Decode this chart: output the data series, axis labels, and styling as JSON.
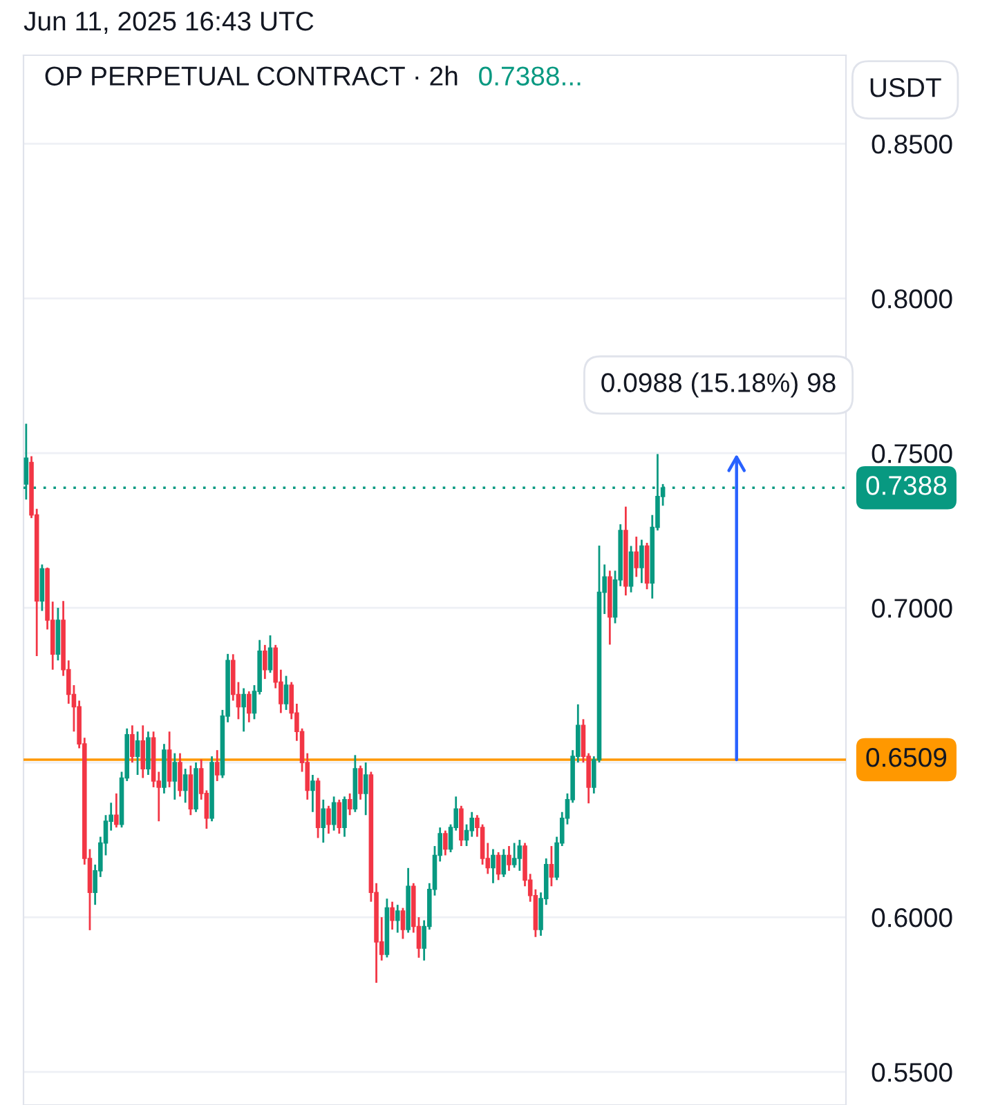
{
  "chart_data": {
    "type": "candlestick",
    "title": "OP PERPETUAL CONTRACT · 2h",
    "ylabel": "USDT",
    "annotations": [
      "Jun 11, 2025 16:43 UTC",
      "0.7388...",
      "0.0988 (15.18%) 98"
    ],
    "categories": [
      null,
      null,
      null,
      null,
      null,
      null,
      null,
      null,
      null,
      null,
      null,
      null,
      null,
      null,
      null,
      null,
      null,
      null,
      null,
      null,
      null,
      null,
      null,
      null,
      null,
      null,
      null,
      null,
      null,
      null,
      null,
      null,
      null,
      null,
      null,
      null,
      null,
      null,
      null,
      null,
      null,
      null,
      null,
      null,
      null,
      null,
      null,
      null,
      null,
      null,
      null,
      null,
      null,
      null,
      null,
      null,
      null,
      null,
      null,
      null,
      null,
      null,
      null,
      null,
      null,
      null,
      null,
      null,
      null,
      null,
      null,
      null,
      null,
      null,
      null,
      null,
      null,
      null,
      null,
      null,
      null,
      null,
      null,
      null,
      null,
      null,
      null,
      null,
      null,
      null,
      null,
      null,
      null,
      null,
      null,
      null,
      null,
      null,
      null,
      null,
      null,
      null,
      null,
      null,
      null,
      null,
      null,
      null,
      null,
      null,
      null,
      null,
      null,
      null,
      null,
      null,
      null,
      null,
      null,
      null,
      null,
      null,
      null,
      null,
      null,
      null,
      null,
      null,
      null,
      null,
      null,
      null,
      null,
      null,
      null,
      null,
      null,
      null,
      null,
      null,
      null,
      null,
      null,
      null,
      null,
      null,
      null,
      null,
      null,
      null,
      null,
      null,
      null,
      null,
      null
    ],
    "ohlc": [
      [
        0.74,
        0.7595,
        0.735,
        0.7484
      ],
      [
        0.747,
        0.749,
        0.729,
        0.73
      ],
      [
        0.73,
        0.732,
        0.6844,
        0.7022
      ],
      [
        0.7022,
        0.714,
        0.699,
        0.7126
      ],
      [
        0.7126,
        0.713,
        0.693,
        0.696
      ],
      [
        0.696,
        0.702,
        0.68,
        0.685
      ],
      [
        0.685,
        0.7,
        0.683,
        0.696
      ],
      [
        0.696,
        0.7022,
        0.678,
        0.68
      ],
      [
        0.68,
        0.683,
        0.669,
        0.672
      ],
      [
        0.672,
        0.675,
        0.66,
        0.668
      ],
      [
        0.668,
        0.67,
        0.6546,
        0.656
      ],
      [
        0.656,
        0.658,
        0.617,
        0.619
      ],
      [
        0.619,
        0.622,
        0.5958,
        0.608
      ],
      [
        0.608,
        0.617,
        0.604,
        0.615
      ],
      [
        0.615,
        0.626,
        0.613,
        0.624
      ],
      [
        0.624,
        0.633,
        0.62,
        0.631
      ],
      [
        0.631,
        0.637,
        0.628,
        0.633
      ],
      [
        0.633,
        0.64,
        0.629,
        0.63
      ],
      [
        0.63,
        0.647,
        0.629,
        0.645
      ],
      [
        0.645,
        0.661,
        0.644,
        0.659
      ],
      [
        0.659,
        0.662,
        0.65,
        0.652
      ],
      [
        0.652,
        0.66,
        0.646,
        0.657
      ],
      [
        0.657,
        0.662,
        0.645,
        0.648
      ],
      [
        0.648,
        0.66,
        0.646,
        0.658
      ],
      [
        0.658,
        0.66,
        0.642,
        0.644
      ],
      [
        0.644,
        0.647,
        0.631,
        0.642
      ],
      [
        0.642,
        0.656,
        0.64,
        0.654
      ],
      [
        0.654,
        0.66,
        0.642,
        0.644
      ],
      [
        0.644,
        0.653,
        0.638,
        0.65
      ],
      [
        0.65,
        0.653,
        0.639,
        0.641
      ],
      [
        0.641,
        0.648,
        0.637,
        0.646
      ],
      [
        0.646,
        0.649,
        0.633,
        0.635
      ],
      [
        0.635,
        0.65,
        0.634,
        0.648
      ],
      [
        0.648,
        0.651,
        0.638,
        0.64
      ],
      [
        0.64,
        0.641,
        0.6286,
        0.632
      ],
      [
        0.632,
        0.652,
        0.631,
        0.65
      ],
      [
        0.65,
        0.654,
        0.644,
        0.646
      ],
      [
        0.646,
        0.667,
        0.645,
        0.665
      ],
      [
        0.665,
        0.6851,
        0.663,
        0.683
      ],
      [
        0.683,
        0.685,
        0.67,
        0.672
      ],
      [
        0.672,
        0.676,
        0.664,
        0.668
      ],
      [
        0.668,
        0.674,
        0.66,
        0.672
      ],
      [
        0.672,
        0.673,
        0.663,
        0.666
      ],
      [
        0.666,
        0.675,
        0.664,
        0.673
      ],
      [
        0.673,
        0.6896,
        0.672,
        0.686
      ],
      [
        0.686,
        0.688,
        0.677,
        0.68
      ],
      [
        0.68,
        0.6911,
        0.679,
        0.687
      ],
      [
        0.687,
        0.688,
        0.674,
        0.676
      ],
      [
        0.676,
        0.68,
        0.666,
        0.669
      ],
      [
        0.669,
        0.678,
        0.667,
        0.675
      ],
      [
        0.675,
        0.676,
        0.664,
        0.666
      ],
      [
        0.666,
        0.669,
        0.657,
        0.66
      ],
      [
        0.66,
        0.661,
        0.647,
        0.65
      ],
      [
        0.65,
        0.653,
        0.638,
        0.641
      ],
      [
        0.641,
        0.646,
        0.634,
        0.644
      ],
      [
        0.644,
        0.645,
        0.6256,
        0.629
      ],
      [
        0.629,
        0.638,
        0.6241,
        0.635
      ],
      [
        0.635,
        0.636,
        0.627,
        0.63
      ],
      [
        0.63,
        0.639,
        0.628,
        0.637
      ],
      [
        0.637,
        0.638,
        0.627,
        0.629
      ],
      [
        0.629,
        0.639,
        0.626,
        0.638
      ],
      [
        0.638,
        0.64,
        0.633,
        0.635
      ],
      [
        0.635,
        0.6524,
        0.634,
        0.648
      ],
      [
        0.648,
        0.649,
        0.638,
        0.64
      ],
      [
        0.64,
        0.65,
        0.633,
        0.646
      ],
      [
        0.646,
        0.647,
        0.605,
        0.608
      ],
      [
        0.608,
        0.611,
        0.5788,
        0.592
      ],
      [
        0.592,
        0.6,
        0.586,
        0.588
      ],
      [
        0.588,
        0.606,
        0.587,
        0.603
      ],
      [
        0.603,
        0.605,
        0.596,
        0.599
      ],
      [
        0.599,
        0.604,
        0.595,
        0.602
      ],
      [
        0.602,
        0.603,
        0.593,
        0.596
      ],
      [
        0.596,
        0.6159,
        0.595,
        0.61
      ],
      [
        0.61,
        0.611,
        0.595,
        0.597
      ],
      [
        0.597,
        0.6,
        0.5869,
        0.59
      ],
      [
        0.59,
        0.599,
        0.586,
        0.597
      ],
      [
        0.597,
        0.611,
        0.596,
        0.609
      ],
      [
        0.609,
        0.623,
        0.607,
        0.62
      ],
      [
        0.62,
        0.629,
        0.618,
        0.627
      ],
      [
        0.627,
        0.628,
        0.62,
        0.622
      ],
      [
        0.622,
        0.63,
        0.621,
        0.629
      ],
      [
        0.629,
        0.639,
        0.628,
        0.635
      ],
      [
        0.635,
        0.636,
        0.623,
        0.625
      ],
      [
        0.625,
        0.63,
        0.623,
        0.628
      ],
      [
        0.628,
        0.634,
        0.626,
        0.632
      ],
      [
        0.632,
        0.633,
        0.626,
        0.629
      ],
      [
        0.629,
        0.63,
        0.617,
        0.619
      ],
      [
        0.619,
        0.624,
        0.614,
        0.616
      ],
      [
        0.616,
        0.622,
        0.611,
        0.62
      ],
      [
        0.62,
        0.621,
        0.612,
        0.614
      ],
      [
        0.614,
        0.622,
        0.613,
        0.62
      ],
      [
        0.62,
        0.623,
        0.615,
        0.617
      ],
      [
        0.617,
        0.624,
        0.616,
        0.619
      ],
      [
        0.619,
        0.625,
        0.615,
        0.623
      ],
      [
        0.623,
        0.624,
        0.61,
        0.612
      ],
      [
        0.612,
        0.614,
        0.605,
        0.607
      ],
      [
        0.607,
        0.609,
        0.5936,
        0.596
      ],
      [
        0.596,
        0.608,
        0.594,
        0.606
      ],
      [
        0.606,
        0.619,
        0.604,
        0.617
      ],
      [
        0.617,
        0.623,
        0.61,
        0.613
      ],
      [
        0.613,
        0.626,
        0.612,
        0.624
      ],
      [
        0.624,
        0.634,
        0.623,
        0.632
      ],
      [
        0.632,
        0.64,
        0.63,
        0.638
      ],
      [
        0.638,
        0.654,
        0.637,
        0.652
      ],
      [
        0.652,
        0.6688,
        0.65,
        0.662
      ],
      [
        0.662,
        0.664,
        0.65,
        0.652
      ],
      [
        0.652,
        0.653,
        0.6368,
        0.642
      ],
      [
        0.642,
        0.652,
        0.64,
        0.6509
      ],
      [
        0.6509,
        0.7201,
        0.65,
        0.705
      ],
      [
        0.705,
        0.714,
        0.698,
        0.71
      ],
      [
        0.71,
        0.712,
        0.6881,
        0.697
      ],
      [
        0.697,
        0.712,
        0.695,
        0.709
      ],
      [
        0.709,
        0.727,
        0.707,
        0.725
      ],
      [
        0.725,
        0.7327,
        0.704,
        0.707
      ],
      [
        0.707,
        0.72,
        0.705,
        0.718
      ],
      [
        0.718,
        0.723,
        0.71,
        0.713
      ],
      [
        0.713,
        0.722,
        0.708,
        0.72
      ],
      [
        0.72,
        0.721,
        0.706,
        0.708
      ],
      [
        0.708,
        0.73,
        0.703,
        0.726
      ],
      [
        0.726,
        0.7497,
        0.725,
        0.736
      ],
      [
        0.736,
        0.74,
        0.733,
        0.7388
      ],
      null,
      null,
      null,
      null,
      null,
      null,
      null,
      null,
      null,
      null,
      null,
      null,
      null,
      null,
      null,
      null,
      null,
      null,
      null,
      null,
      null,
      null,
      null,
      null,
      null,
      null,
      null,
      null,
      null,
      null,
      null,
      null,
      null,
      null
    ],
    "ylim": [
      0.5393,
      0.8786
    ],
    "yticks": [
      {
        "value": 0.55,
        "label": "0.5500"
      },
      {
        "value": 0.6,
        "label": "0.6000"
      },
      {
        "value": 0.65,
        "label": null
      },
      {
        "value": 0.7,
        "label": "0.7000"
      },
      {
        "value": 0.75,
        "label": "0.7500"
      },
      {
        "value": 0.8,
        "label": "0.8000"
      },
      {
        "value": 0.85,
        "label": "0.8500"
      }
    ],
    "ref_lines": [
      {
        "axis": "y",
        "value": 0.7388,
        "label": "0.7388",
        "color": "#089981",
        "line_style": "dotted"
      },
      {
        "axis": "y",
        "value": 0.6509,
        "label": "0.6509",
        "color": "#ff9800",
        "line_style": "solid"
      }
    ],
    "grid": "y",
    "tick_labels": "y"
  }
}
